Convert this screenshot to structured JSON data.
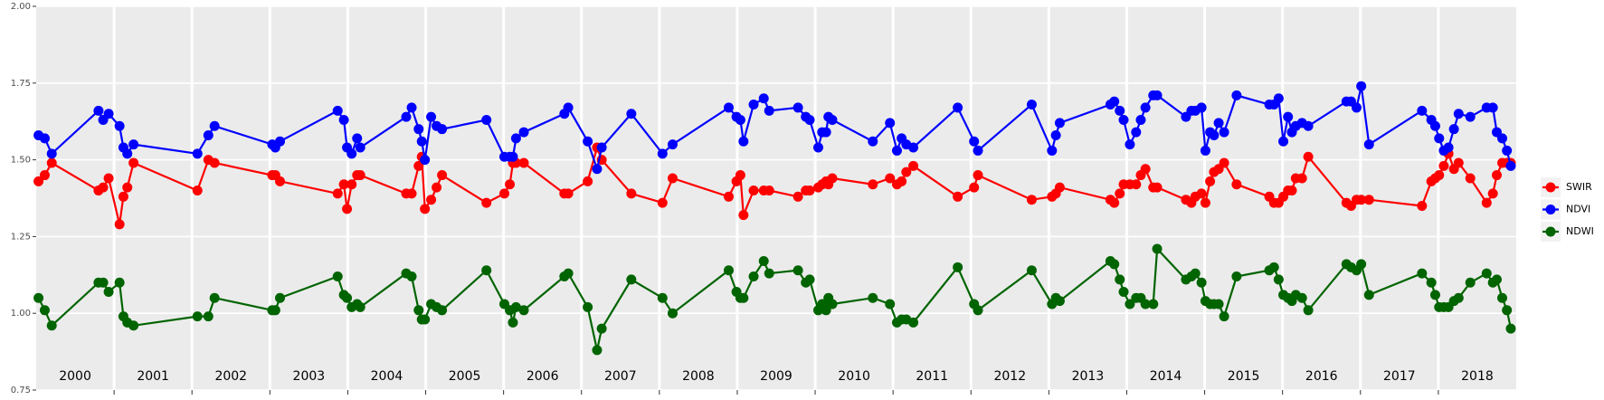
{
  "chart_data": {
    "type": "line",
    "x": [
      2000.03,
      2000.11,
      2000.2,
      2000.8,
      2000.86,
      2000.93,
      2001.07,
      2001.12,
      2001.17,
      2001.25,
      2002.07,
      2002.21,
      2002.29,
      2003.03,
      2003.07,
      2003.13,
      2003.87,
      2003.95,
      2003.99,
      2004.05,
      2004.12,
      2004.16,
      2004.75,
      2004.82,
      2004.91,
      2004.95,
      2004.99,
      2005.07,
      2005.14,
      2005.21,
      2005.78,
      2006.01,
      2006.08,
      2006.12,
      2006.16,
      2006.26,
      2006.78,
      2006.83,
      2007.08,
      2007.2,
      2007.26,
      2007.64,
      2008.04,
      2008.17,
      2008.89,
      2008.99,
      2009.04,
      2009.08,
      2009.21,
      2009.34,
      2009.41,
      2009.78,
      2009.88,
      2009.93,
      2010.04,
      2010.09,
      2010.14,
      2010.17,
      2010.22,
      2010.74,
      2010.96,
      2011.05,
      2011.11,
      2011.17,
      2011.26,
      2011.83,
      2012.04,
      2012.09,
      2012.78,
      2013.04,
      2013.09,
      2013.14,
      2013.79,
      2013.84,
      2013.91,
      2013.96,
      2014.04,
      2014.12,
      2014.18,
      2014.24,
      2014.34,
      2014.39,
      2014.76,
      2014.83,
      2014.88,
      2014.96,
      2015.01,
      2015.07,
      2015.12,
      2015.18,
      2015.25,
      2015.41,
      2015.83,
      2015.89,
      2015.95,
      2016.01,
      2016.07,
      2016.12,
      2016.17,
      2016.25,
      2016.33,
      2016.82,
      2016.88,
      2016.95,
      2017.01,
      2017.11,
      2017.79,
      2017.91,
      2017.96,
      2018.01,
      2018.07,
      2018.13,
      2018.2,
      2018.26,
      2018.41,
      2018.62,
      2018.7,
      2018.75,
      2018.82,
      2018.88,
      2018.93
    ],
    "series": [
      {
        "name": "SWIR",
        "color": "#ff0000",
        "values": [
          1.43,
          1.45,
          1.49,
          1.4,
          1.41,
          1.44,
          1.29,
          1.38,
          1.41,
          1.49,
          1.4,
          1.5,
          1.49,
          1.45,
          1.45,
          1.43,
          1.39,
          1.42,
          1.34,
          1.42,
          1.45,
          1.45,
          1.39,
          1.39,
          1.48,
          1.51,
          1.34,
          1.37,
          1.41,
          1.45,
          1.36,
          1.39,
          1.42,
          1.49,
          1.49,
          1.49,
          1.39,
          1.39,
          1.43,
          1.54,
          1.5,
          1.39,
          1.36,
          1.44,
          1.38,
          1.43,
          1.45,
          1.32,
          1.4,
          1.4,
          1.4,
          1.38,
          1.4,
          1.4,
          1.41,
          1.42,
          1.43,
          1.42,
          1.44,
          1.42,
          1.44,
          1.42,
          1.43,
          1.46,
          1.48,
          1.38,
          1.41,
          1.45,
          1.37,
          1.38,
          1.39,
          1.41,
          1.37,
          1.36,
          1.39,
          1.42,
          1.42,
          1.42,
          1.45,
          1.47,
          1.41,
          1.41,
          1.37,
          1.36,
          1.38,
          1.39,
          1.36,
          1.43,
          1.46,
          1.47,
          1.49,
          1.42,
          1.38,
          1.36,
          1.36,
          1.38,
          1.4,
          1.4,
          1.44,
          1.44,
          1.51,
          1.36,
          1.35,
          1.37,
          1.37,
          1.37,
          1.35,
          1.43,
          1.44,
          1.45,
          1.48,
          1.52,
          1.47,
          1.49,
          1.44,
          1.36,
          1.39,
          1.45,
          1.49,
          1.49,
          1.49
        ]
      },
      {
        "name": "NDVI",
        "color": "#0000ff",
        "values": [
          1.58,
          1.57,
          1.52,
          1.66,
          1.63,
          1.65,
          1.61,
          1.54,
          1.52,
          1.55,
          1.52,
          1.58,
          1.61,
          1.55,
          1.54,
          1.56,
          1.66,
          1.63,
          1.54,
          1.52,
          1.57,
          1.54,
          1.64,
          1.67,
          1.6,
          1.56,
          1.5,
          1.64,
          1.61,
          1.6,
          1.63,
          1.51,
          1.51,
          1.51,
          1.57,
          1.59,
          1.65,
          1.67,
          1.56,
          1.47,
          1.54,
          1.65,
          1.52,
          1.55,
          1.67,
          1.64,
          1.63,
          1.56,
          1.68,
          1.7,
          1.66,
          1.67,
          1.64,
          1.63,
          1.54,
          1.59,
          1.59,
          1.64,
          1.63,
          1.56,
          1.62,
          1.53,
          1.57,
          1.55,
          1.54,
          1.67,
          1.56,
          1.53,
          1.68,
          1.53,
          1.58,
          1.62,
          1.68,
          1.69,
          1.66,
          1.63,
          1.55,
          1.59,
          1.63,
          1.67,
          1.71,
          1.71,
          1.64,
          1.66,
          1.66,
          1.67,
          1.53,
          1.59,
          1.58,
          1.62,
          1.59,
          1.71,
          1.68,
          1.68,
          1.7,
          1.56,
          1.64,
          1.59,
          1.61,
          1.62,
          1.61,
          1.69,
          1.69,
          1.67,
          1.74,
          1.55,
          1.66,
          1.63,
          1.61,
          1.57,
          1.53,
          1.54,
          1.6,
          1.65,
          1.64,
          1.67,
          1.67,
          1.59,
          1.57,
          1.53,
          1.48
        ]
      },
      {
        "name": "NDWI",
        "color": "#006400",
        "values": [
          1.05,
          1.01,
          0.96,
          1.1,
          1.1,
          1.07,
          1.1,
          0.99,
          0.97,
          0.96,
          0.99,
          0.99,
          1.05,
          1.01,
          1.01,
          1.05,
          1.12,
          1.06,
          1.05,
          1.02,
          1.03,
          1.02,
          1.13,
          1.12,
          1.01,
          0.98,
          0.98,
          1.03,
          1.02,
          1.01,
          1.14,
          1.03,
          1.01,
          0.97,
          1.02,
          1.01,
          1.12,
          1.13,
          1.02,
          0.88,
          0.95,
          1.11,
          1.05,
          1.0,
          1.14,
          1.07,
          1.05,
          1.05,
          1.12,
          1.17,
          1.13,
          1.14,
          1.1,
          1.11,
          1.01,
          1.03,
          1.01,
          1.05,
          1.03,
          1.05,
          1.03,
          0.97,
          0.98,
          0.98,
          0.97,
          1.15,
          1.03,
          1.01,
          1.14,
          1.03,
          1.05,
          1.04,
          1.17,
          1.16,
          1.11,
          1.07,
          1.03,
          1.05,
          1.05,
          1.03,
          1.03,
          1.21,
          1.11,
          1.12,
          1.13,
          1.1,
          1.04,
          1.03,
          1.03,
          1.03,
          0.99,
          1.12,
          1.14,
          1.15,
          1.11,
          1.06,
          1.05,
          1.04,
          1.06,
          1.05,
          1.01,
          1.16,
          1.15,
          1.14,
          1.16,
          1.06,
          1.13,
          1.1,
          1.06,
          1.02,
          1.02,
          1.02,
          1.04,
          1.05,
          1.1,
          1.13,
          1.1,
          1.11,
          1.05,
          1.01,
          0.95
        ]
      }
    ],
    "xlim": [
      2000,
      2019
    ],
    "xticks": [
      2001,
      2002,
      2003,
      2004,
      2005,
      2006,
      2007,
      2008,
      2009,
      2010,
      2011,
      2012,
      2013,
      2014,
      2015,
      2016,
      2017,
      2018
    ],
    "year_labels": [
      "2000",
      "2001",
      "2002",
      "2003",
      "2004",
      "2005",
      "2006",
      "2007",
      "2008",
      "2009",
      "2010",
      "2011",
      "2012",
      "2013",
      "2014",
      "2015",
      "2016",
      "2017",
      "2018"
    ],
    "ylim": [
      0.75,
      2.0
    ],
    "yticks": [
      0.75,
      {
        "value": 1,
        "label": "1.00"
      },
      1.25,
      {
        "value": 1.5,
        "label": "1.50"
      },
      1.75,
      {
        "value": 2,
        "label": "2.00"
      }
    ],
    "grid": true
  }
}
